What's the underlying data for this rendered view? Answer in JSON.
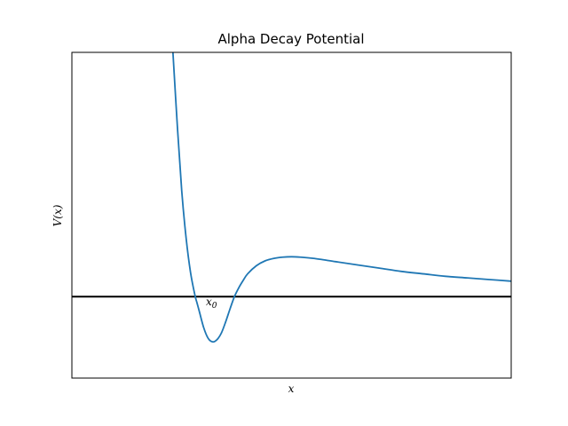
{
  "chart_data": {
    "type": "line",
    "title": "Alpha Decay Potential",
    "xlabel": "x",
    "ylabel": "V(x)",
    "xticks": [],
    "yticks": [],
    "xlim": [
      0,
      10
    ],
    "ylim": [
      -1.0,
      3.0
    ],
    "grid": false,
    "legend": "none",
    "series": [
      {
        "color": "#1f77b4",
        "x": [
          2.3,
          2.4,
          2.5,
          2.6,
          2.7,
          2.8,
          2.85,
          2.9,
          3.0,
          3.1,
          3.2,
          3.3,
          3.4,
          3.5,
          3.6,
          3.7,
          3.8,
          3.9,
          4.0,
          4.2,
          4.4,
          4.6,
          4.8,
          5.0,
          5.2,
          5.5,
          6.0,
          6.5,
          7.0,
          7.5,
          8.0,
          8.5,
          9.0,
          9.5,
          10.0
        ],
        "y": [
          3.0,
          2.1,
          1.3,
          0.72,
          0.3,
          0.02,
          -0.08,
          -0.18,
          -0.38,
          -0.51,
          -0.555,
          -0.53,
          -0.45,
          -0.31,
          -0.15,
          0.0,
          0.11,
          0.2,
          0.28,
          0.38,
          0.44,
          0.47,
          0.485,
          0.49,
          0.485,
          0.47,
          0.43,
          0.39,
          0.35,
          0.31,
          0.28,
          0.25,
          0.23,
          0.21,
          0.19
        ]
      }
    ],
    "hline": {
      "y": 0,
      "color": "#000000"
    },
    "annotations": [
      {
        "text": "x",
        "subscript": "0",
        "x": 3.05,
        "y": -0.05
      }
    ]
  }
}
